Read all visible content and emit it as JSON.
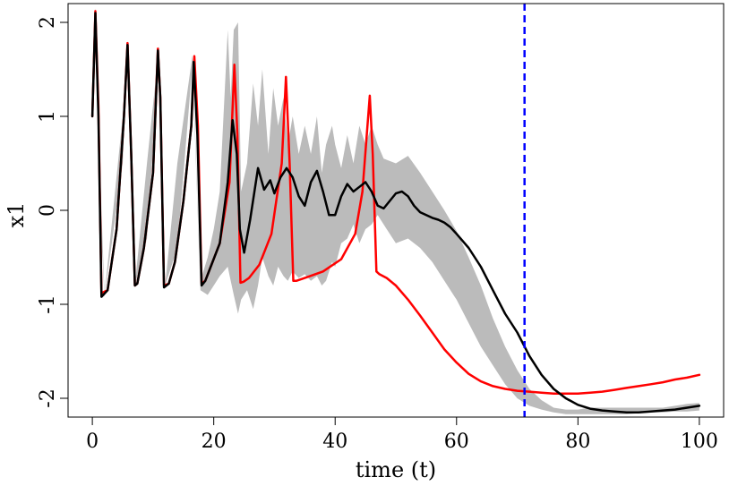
{
  "chart_data": {
    "type": "line",
    "title": "",
    "xlabel": "time (t)",
    "ylabel": "x1",
    "xlim": [
      -4,
      104
    ],
    "ylim": [
      -2.2,
      2.2
    ],
    "xticks": [
      0,
      20,
      40,
      60,
      80,
      100
    ],
    "yticks": [
      -2,
      -1,
      0,
      1,
      2
    ],
    "vline": {
      "x": 71.2,
      "color": "#0000ff",
      "style": "dashed"
    },
    "band": {
      "color": "#bbbbbb",
      "x": [
        0,
        0.3,
        0.5,
        1.5,
        2,
        5,
        5.8,
        7,
        9,
        11,
        12,
        14,
        16.5,
        17.8,
        19,
        20,
        21,
        22.3,
        22.8,
        23.3,
        24,
        24.5,
        25.5,
        26.5,
        27.3,
        28,
        29,
        29.8,
        30.6,
        31.5,
        32.2,
        33,
        34,
        35,
        36,
        37,
        37.8,
        38.5,
        39.5,
        40,
        41,
        42,
        43,
        44,
        45,
        46,
        47,
        48,
        50,
        52,
        54,
        56,
        58,
        60,
        62,
        64,
        66,
        68,
        70,
        72,
        74,
        76,
        78,
        80,
        82,
        84,
        86,
        88,
        90,
        92,
        94,
        96,
        98,
        100
      ],
      "upper": [
        1.0,
        2.0,
        2.15,
        0.0,
        -0.9,
        1.0,
        1.8,
        -0.8,
        0.5,
        1.75,
        -0.8,
        0.5,
        1.65,
        -0.75,
        -0.5,
        -0.2,
        0.2,
        1.92,
        1.2,
        1.92,
        2.0,
        0.2,
        0.5,
        1.35,
        0.9,
        1.5,
        0.6,
        1.3,
        0.9,
        1.2,
        0.7,
        1.0,
        0.6,
        0.9,
        0.6,
        1.0,
        0.4,
        0.7,
        0.9,
        0.7,
        0.45,
        0.8,
        0.5,
        0.9,
        0.7,
        0.9,
        0.7,
        0.55,
        0.5,
        0.58,
        0.4,
        0.2,
        0.0,
        -0.22,
        -0.5,
        -0.8,
        -1.15,
        -1.45,
        -1.7,
        -1.9,
        -2.02,
        -2.1,
        -2.12,
        -2.12,
        -2.1,
        -2.1,
        -2.1,
        -2.1,
        -2.1,
        -2.1,
        -2.1,
        -2.08,
        -2.06,
        -2.05
      ],
      "lower": [
        1.0,
        1.9,
        2.0,
        -0.3,
        -0.92,
        0.5,
        1.7,
        -0.8,
        -0.3,
        1.65,
        -0.8,
        -0.4,
        1.55,
        -0.85,
        -0.9,
        -0.8,
        -0.7,
        -0.6,
        -0.75,
        -0.9,
        -1.1,
        -0.95,
        -0.85,
        -1.05,
        -0.8,
        -0.5,
        -0.7,
        -0.8,
        -0.6,
        -0.7,
        -0.75,
        -0.65,
        -0.72,
        -0.68,
        -0.75,
        -0.7,
        -0.8,
        -0.75,
        -0.55,
        -0.6,
        -0.35,
        -0.3,
        -0.15,
        -0.35,
        -0.2,
        -0.15,
        -0.05,
        -0.15,
        -0.35,
        -0.3,
        -0.4,
        -0.55,
        -0.75,
        -0.95,
        -1.2,
        -1.45,
        -1.65,
        -1.85,
        -2.0,
        -2.08,
        -2.12,
        -2.15,
        -2.17,
        -2.17,
        -2.17,
        -2.17,
        -2.17,
        -2.17,
        -2.16,
        -2.15,
        -2.15,
        -2.14,
        -2.14,
        -2.13
      ]
    },
    "series": [
      {
        "color": "#ff0000",
        "x": [
          0,
          0.5,
          1,
          1.5,
          2.5,
          4,
          5.2,
          5.8,
          6.4,
          7,
          7.4,
          8.5,
          10,
          10.8,
          11.2,
          11.8,
          12.6,
          13.6,
          15,
          16.3,
          16.8,
          17.4,
          18,
          18.6,
          19.5,
          21,
          22.6,
          23.4,
          23.9,
          24.4,
          24.9,
          25.8,
          27.5,
          29.5,
          31.2,
          31.9,
          32.5,
          33.1,
          33.6,
          35,
          38,
          41,
          43.3,
          44.5,
          45.2,
          45.7,
          46.2,
          46.8,
          47.3,
          48.5,
          50,
          52,
          54,
          56,
          58,
          60,
          62,
          64,
          66,
          68,
          70,
          72,
          74,
          76,
          78,
          80,
          82,
          84,
          86,
          88,
          90,
          92,
          94,
          96,
          98,
          100
        ],
        "y": [
          1.0,
          2.12,
          1.1,
          -0.88,
          -0.85,
          -0.2,
          1.0,
          1.78,
          0.6,
          -0.8,
          -0.78,
          -0.4,
          0.4,
          1.72,
          1.2,
          -0.8,
          -0.78,
          -0.55,
          0.1,
          0.9,
          1.64,
          0.9,
          -0.78,
          -0.75,
          -0.6,
          -0.35,
          0.3,
          1.55,
          0.8,
          -0.77,
          -0.76,
          -0.72,
          -0.58,
          -0.25,
          0.5,
          1.42,
          0.5,
          -0.75,
          -0.75,
          -0.72,
          -0.65,
          -0.52,
          -0.25,
          0.2,
          0.8,
          1.22,
          0.6,
          -0.65,
          -0.68,
          -0.72,
          -0.8,
          -0.95,
          -1.12,
          -1.3,
          -1.48,
          -1.62,
          -1.74,
          -1.82,
          -1.87,
          -1.9,
          -1.92,
          -1.93,
          -1.94,
          -1.95,
          -1.95,
          -1.95,
          -1.94,
          -1.93,
          -1.91,
          -1.89,
          -1.87,
          -1.85,
          -1.83,
          -1.8,
          -1.78,
          -1.75
        ]
      },
      {
        "color": "#000000",
        "x": [
          0,
          0.5,
          1,
          1.5,
          2.5,
          4,
          5.2,
          5.8,
          6.4,
          7,
          7.4,
          8.5,
          10,
          10.8,
          11.2,
          11.8,
          12.6,
          13.6,
          15,
          16.3,
          16.7,
          17.3,
          18,
          18.6,
          19.5,
          21,
          22.3,
          23.1,
          23.8,
          24.3,
          25,
          26,
          27.3,
          28.3,
          29.3,
          30,
          31,
          32,
          33,
          34,
          35,
          36,
          37,
          38,
          39,
          40,
          41,
          42,
          43,
          44,
          45,
          46,
          47,
          48,
          49,
          50,
          51,
          52,
          53,
          54,
          55,
          56,
          57,
          58,
          59,
          60,
          62,
          64,
          66,
          68,
          70,
          72,
          74,
          76,
          78,
          80,
          82,
          84,
          86,
          88,
          90,
          92,
          94,
          96,
          98,
          100
        ],
        "y": [
          1.0,
          2.1,
          1.0,
          -0.92,
          -0.85,
          -0.2,
          1.0,
          1.76,
          0.6,
          -0.8,
          -0.78,
          -0.4,
          0.4,
          1.7,
          1.2,
          -0.82,
          -0.78,
          -0.55,
          0.1,
          0.9,
          1.58,
          0.8,
          -0.8,
          -0.75,
          -0.6,
          -0.35,
          0.3,
          0.96,
          0.6,
          -0.2,
          -0.45,
          -0.1,
          0.45,
          0.22,
          0.32,
          0.18,
          0.35,
          0.45,
          0.35,
          0.15,
          0.05,
          0.3,
          0.42,
          0.2,
          -0.05,
          -0.05,
          0.15,
          0.28,
          0.2,
          0.25,
          0.3,
          0.2,
          0.05,
          0.02,
          0.1,
          0.18,
          0.2,
          0.15,
          0.05,
          -0.02,
          -0.05,
          -0.08,
          -0.1,
          -0.13,
          -0.18,
          -0.25,
          -0.4,
          -0.6,
          -0.85,
          -1.1,
          -1.3,
          -1.55,
          -1.75,
          -1.9,
          -2.0,
          -2.07,
          -2.11,
          -2.13,
          -2.14,
          -2.15,
          -2.15,
          -2.14,
          -2.13,
          -2.12,
          -2.1,
          -2.08
        ]
      }
    ]
  }
}
